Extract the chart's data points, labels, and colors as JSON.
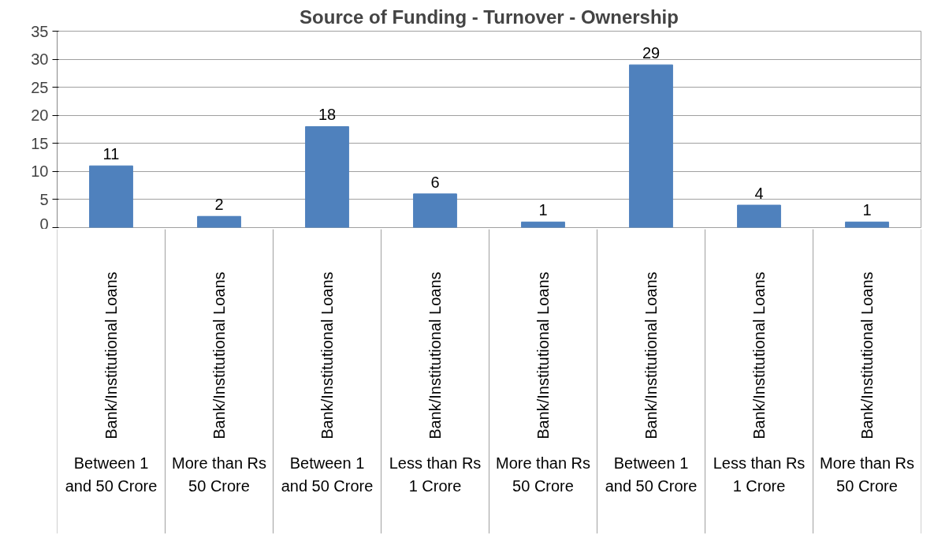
{
  "chart_data": {
    "type": "bar",
    "title": "Source of Funding - Turnover - Ownership",
    "categories": [
      [
        "Bank/Institutional Loans",
        "Between 1 and 50 Crore"
      ],
      [
        "Bank/Institutional Loans",
        "More than Rs 50 Crore"
      ],
      [
        "Bank/Institutional Loans",
        "Between 1 and 50 Crore"
      ],
      [
        "Bank/Institutional Loans",
        "Less than Rs 1 Crore"
      ],
      [
        "Bank/Institutional Loans",
        "More than Rs 50 Crore"
      ],
      [
        "Bank/Institutional Loans",
        "Between 1 and 50 Crore"
      ],
      [
        "Bank/Institutional Loans",
        "Less than Rs 1 Crore"
      ],
      [
        "Bank/Institutional Loans",
        "More than Rs 50 Crore"
      ]
    ],
    "values": [
      11,
      2,
      18,
      6,
      1,
      29,
      4,
      1
    ],
    "color": "#4f81bd",
    "ylim": [
      0,
      35
    ],
    "yticks": [
      0,
      5,
      10,
      15,
      20,
      25,
      30,
      35
    ],
    "grid": "y",
    "data_labels": true
  }
}
